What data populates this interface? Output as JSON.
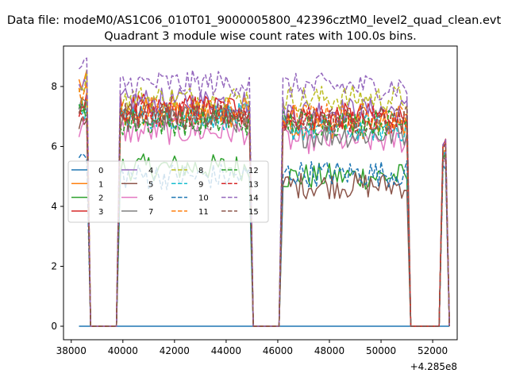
{
  "figure": {
    "suptitle": "Data file: modeM0/AS1C06_010T01_9000005800_42396cztM0_level2_quad_clean.evt",
    "title": "Quadrant 3 module wise count rates with 100.0s bins.",
    "x_offset_label": "+4.285e8"
  },
  "chart_data": {
    "type": "line",
    "title": "Quadrant 3 module wise count rates with 100.0s bins.",
    "xlabel": "",
    "ylabel": "",
    "xlim": [
      37700,
      52950
    ],
    "ylim": [
      -0.45,
      9.35
    ],
    "x_offset": 428500000,
    "x_ticks": [
      38000,
      40000,
      42000,
      44000,
      46000,
      48000,
      50000,
      52000
    ],
    "x_tick_labels": [
      "38000",
      "40000",
      "42000",
      "44000",
      "46000",
      "48000",
      "50000",
      "52000"
    ],
    "y_ticks": [
      0,
      2,
      4,
      6,
      8
    ],
    "y_tick_labels": [
      "0",
      "2",
      "4",
      "6",
      "8"
    ],
    "grid": false,
    "legend": {
      "placement": "center-left",
      "columns": 4
    },
    "segments": [
      {
        "x_start": 38300,
        "x_end": 38600
      },
      {
        "x_start": 39900,
        "x_end": 44900
      },
      {
        "x_start": 46200,
        "x_end": 51000
      },
      {
        "x_start": 52400,
        "x_end": 52500
      }
    ],
    "series": [
      {
        "name": "0",
        "color": "#1f77b4",
        "dash": false,
        "p1": 0,
        "p2": 0,
        "p3": 0,
        "p4": 0
      },
      {
        "name": "1",
        "color": "#ff7f0e",
        "dash": false,
        "p1": 8.1,
        "p2": 7.0,
        "p3": 6.7,
        "p4": 5.9
      },
      {
        "name": "2",
        "color": "#2ca02c",
        "dash": false,
        "p1": 7.3,
        "p2": 5.3,
        "p3": 5.0,
        "p4": 5.7
      },
      {
        "name": "3",
        "color": "#d62728",
        "dash": false,
        "p1": 7.4,
        "p2": 7.3,
        "p3": 7.0,
        "p4": 6.1
      },
      {
        "name": "4",
        "color": "#9467bd",
        "dash": false,
        "p1": 7.8,
        "p2": 7.5,
        "p3": 7.2,
        "p4": 5.8
      },
      {
        "name": "5",
        "color": "#8c564b",
        "dash": false,
        "p1": 6.9,
        "p2": 7.0,
        "p3": 4.7,
        "p4": 5.6
      },
      {
        "name": "6",
        "color": "#e377c2",
        "dash": false,
        "p1": 6.6,
        "p2": 6.5,
        "p3": 6.2,
        "p4": 5.5
      },
      {
        "name": "7",
        "color": "#7f7f7f",
        "dash": false,
        "p1": 7.6,
        "p2": 6.9,
        "p3": 6.4,
        "p4": 5.7
      },
      {
        "name": "8",
        "color": "#bcbd22",
        "dash": true,
        "p1": 8.2,
        "p2": 7.6,
        "p3": 7.6,
        "p4": 5.9
      },
      {
        "name": "9",
        "color": "#17becf",
        "dash": true,
        "p1": 7.1,
        "p2": 7.0,
        "p3": 6.6,
        "p4": 5.8
      },
      {
        "name": "10",
        "color": "#1f77b4",
        "dash": true,
        "p1": 5.6,
        "p2": 5.0,
        "p3": 5.1,
        "p4": 5.3
      },
      {
        "name": "11",
        "color": "#ff7f0e",
        "dash": true,
        "p1": 7.8,
        "p2": 7.2,
        "p3": 7.0,
        "p4": 5.9
      },
      {
        "name": "12",
        "color": "#2ca02c",
        "dash": true,
        "p1": 7.0,
        "p2": 6.8,
        "p3": 6.8,
        "p4": 5.8
      },
      {
        "name": "13",
        "color": "#d62728",
        "dash": true,
        "p1": 7.2,
        "p2": 7.1,
        "p3": 6.9,
        "p4": 6.0
      },
      {
        "name": "14",
        "color": "#9467bd",
        "dash": true,
        "p1": 8.6,
        "p2": 8.1,
        "p3": 8.0,
        "p4": 6.1
      },
      {
        "name": "15",
        "color": "#8c564b",
        "dash": true,
        "p1": 7.3,
        "p2": 7.0,
        "p3": 6.9,
        "p4": 6.0
      }
    ]
  }
}
